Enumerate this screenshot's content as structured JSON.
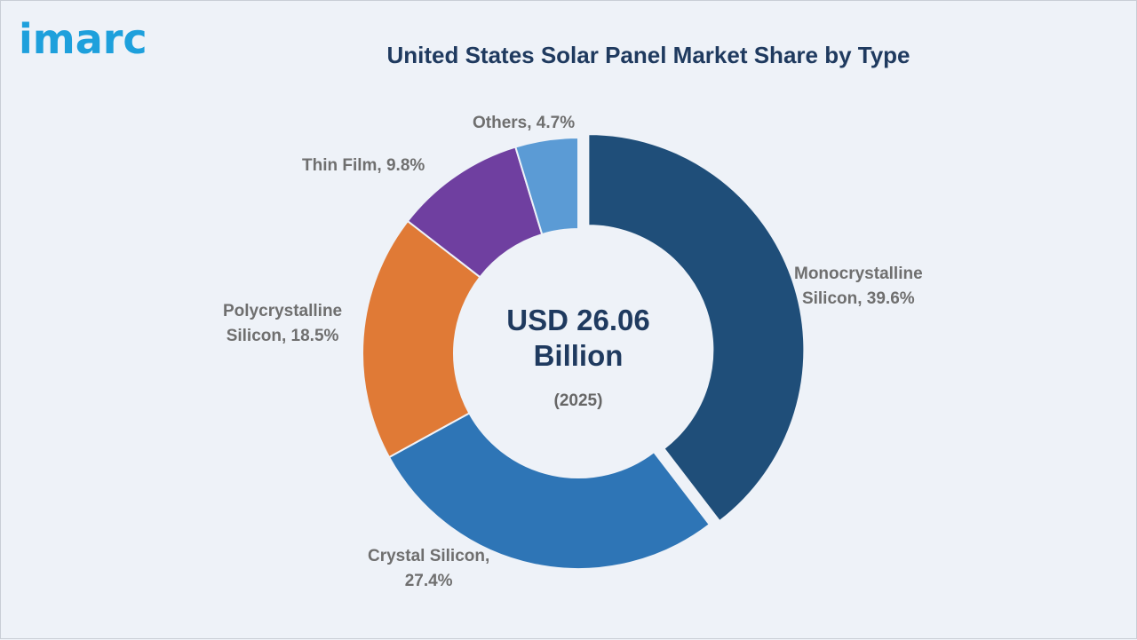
{
  "brand": {
    "logo_text": "imarc",
    "logo_color": "#1ea0dc"
  },
  "chart_data": {
    "type": "pie",
    "title": "United States Solar Panel Market Share by Type",
    "center_value": "USD 26.06 Billion",
    "center_year": "(2025)",
    "slices": [
      {
        "label": "Monocrystalline Silicon",
        "value": 39.6,
        "color": "#1f4e79",
        "exploded": true
      },
      {
        "label": "Crystal Silicon",
        "value": 27.4,
        "color": "#2e75b6"
      },
      {
        "label": "Polycrystalline Silicon",
        "value": 18.5,
        "color": "#e07a36"
      },
      {
        "label": "Thin Film",
        "value": 9.8,
        "color": "#6f3fa0"
      },
      {
        "label": "Others",
        "value": 4.7,
        "color": "#5b9bd5"
      }
    ],
    "labels": {
      "mono_line1": "Monocrystalline",
      "mono_line2": "Silicon, 39.6%",
      "crystal_line1": "Crystal Silicon,",
      "crystal_line2": "27.4%",
      "poly_line1": "Polycrystalline",
      "poly_line2": "Silicon, 18.5%",
      "thin": "Thin Film, 9.8%",
      "others": "Others, 4.7%"
    }
  }
}
